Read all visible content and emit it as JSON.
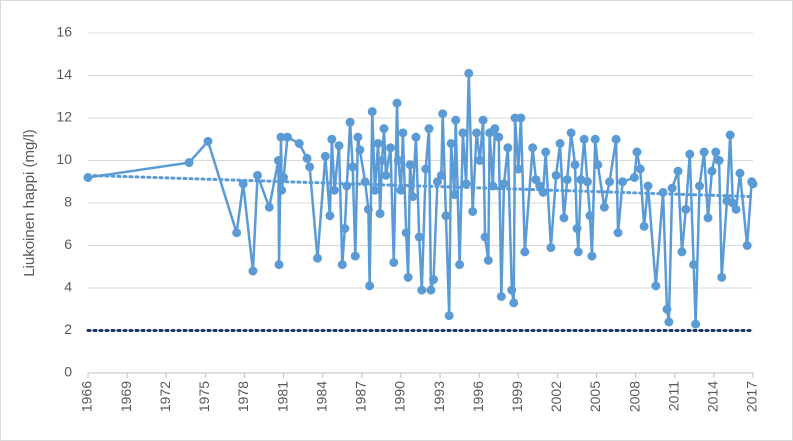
{
  "chart_data": {
    "type": "line",
    "y_label": "Liukoinen happi (mg/l)",
    "xlim": [
      1966,
      2017
    ],
    "xticks": [
      1966,
      1969,
      1972,
      1975,
      1978,
      1981,
      1984,
      1987,
      1990,
      1993,
      1996,
      1999,
      2002,
      2005,
      2008,
      2011,
      2014,
      2017
    ],
    "ylim": [
      0,
      16
    ],
    "yticks": [
      0,
      2,
      4,
      6,
      8,
      10,
      12,
      14,
      16
    ],
    "grid": true,
    "series": [
      {
        "color": "#5b9bd5",
        "line_style": "solid",
        "markers": true,
        "x": [
          1966.0,
          1973.75,
          1975.2,
          1977.4,
          1977.9,
          1978.65,
          1979.0,
          1979.9,
          1980.6,
          1980.65,
          1980.8,
          1980.85,
          1981.0,
          1981.3,
          1982.2,
          1982.8,
          1983.0,
          1983.6,
          1984.2,
          1984.55,
          1984.7,
          1984.9,
          1985.25,
          1985.5,
          1985.7,
          1985.85,
          1986.1,
          1986.3,
          1986.5,
          1986.7,
          1986.85,
          1987.25,
          1987.5,
          1987.6,
          1987.8,
          1988.0,
          1988.25,
          1988.4,
          1988.55,
          1988.7,
          1988.85,
          1989.2,
          1989.45,
          1989.7,
          1989.8,
          1990.0,
          1990.15,
          1990.4,
          1990.55,
          1990.7,
          1990.9,
          1991.15,
          1991.4,
          1991.6,
          1991.9,
          1992.15,
          1992.3,
          1992.5,
          1992.8,
          1993.1,
          1993.2,
          1993.45,
          1993.7,
          1993.85,
          1994.1,
          1994.2,
          1994.5,
          1994.75,
          1995.0,
          1995.2,
          1995.5,
          1995.8,
          1996.05,
          1996.3,
          1996.45,
          1996.7,
          1996.8,
          1997.05,
          1997.2,
          1997.5,
          1997.7,
          1997.9,
          1998.2,
          1998.5,
          1998.65,
          1998.75,
          1999.0,
          1999.2,
          1999.5,
          2000.1,
          2000.35,
          2000.65,
          2000.9,
          2001.1,
          2001.5,
          2001.9,
          2002.2,
          2002.5,
          2002.75,
          2003.05,
          2003.35,
          2003.5,
          2003.6,
          2003.8,
          2004.05,
          2004.3,
          2004.5,
          2004.65,
          2004.9,
          2005.1,
          2005.6,
          2006.0,
          2006.5,
          2006.65,
          2007.0,
          2007.9,
          2008.1,
          2008.35,
          2008.65,
          2008.95,
          2009.55,
          2010.1,
          2010.4,
          2010.55,
          2010.8,
          2011.25,
          2011.55,
          2011.85,
          2012.15,
          2012.45,
          2012.6,
          2012.9,
          2013.25,
          2013.55,
          2013.85,
          2014.15,
          2014.4,
          2014.6,
          2015.0,
          2015.25,
          2015.45,
          2015.7,
          2016.0,
          2016.55,
          2016.9,
          2017.0
        ],
        "values": [
          9.2,
          9.9,
          10.9,
          6.6,
          8.9,
          4.8,
          9.3,
          7.8,
          10.0,
          5.1,
          11.1,
          8.6,
          9.2,
          11.1,
          10.8,
          10.1,
          9.7,
          5.4,
          10.2,
          7.4,
          11.0,
          8.6,
          10.7,
          5.1,
          6.8,
          8.8,
          11.8,
          9.7,
          5.5,
          11.1,
          10.5,
          9.0,
          7.7,
          4.1,
          12.3,
          8.6,
          10.8,
          7.5,
          10.0,
          11.5,
          9.3,
          10.6,
          5.2,
          12.7,
          10.0,
          8.6,
          11.3,
          6.6,
          4.5,
          9.8,
          8.3,
          11.1,
          6.4,
          3.9,
          9.6,
          11.5,
          3.9,
          4.4,
          9.0,
          9.3,
          12.2,
          7.4,
          2.7,
          10.8,
          8.4,
          11.9,
          5.1,
          11.3,
          8.9,
          14.1,
          7.6,
          11.3,
          10.0,
          11.9,
          6.4,
          5.3,
          11.3,
          8.8,
          11.5,
          11.1,
          3.6,
          8.9,
          10.6,
          3.9,
          3.3,
          12.0,
          9.6,
          12.0,
          5.7,
          10.6,
          9.1,
          8.8,
          8.5,
          10.4,
          5.9,
          9.3,
          10.8,
          7.3,
          9.1,
          11.3,
          9.8,
          6.8,
          5.7,
          9.1,
          11.0,
          9.0,
          7.4,
          5.5,
          11.0,
          9.8,
          7.8,
          9.0,
          11.0,
          6.6,
          9.0,
          9.2,
          10.4,
          9.6,
          6.9,
          8.8,
          4.1,
          8.5,
          3.0,
          2.4,
          8.7,
          9.5,
          5.7,
          7.7,
          10.3,
          5.1,
          2.3,
          8.8,
          10.4,
          7.3,
          9.5,
          10.4,
          10.0,
          4.5,
          8.1,
          11.2,
          8.0,
          7.7,
          9.4,
          6.0,
          9.0,
          8.9
        ]
      },
      {
        "color": "#5b9bd5",
        "line_style": "dotted",
        "markers": false,
        "x": [
          1966,
          2017
        ],
        "values": [
          9.3,
          8.3
        ]
      },
      {
        "color": "#203864",
        "line_style": "dotted",
        "markers": false,
        "x": [
          1966,
          2017
        ],
        "values": [
          2,
          2
        ]
      }
    ]
  }
}
